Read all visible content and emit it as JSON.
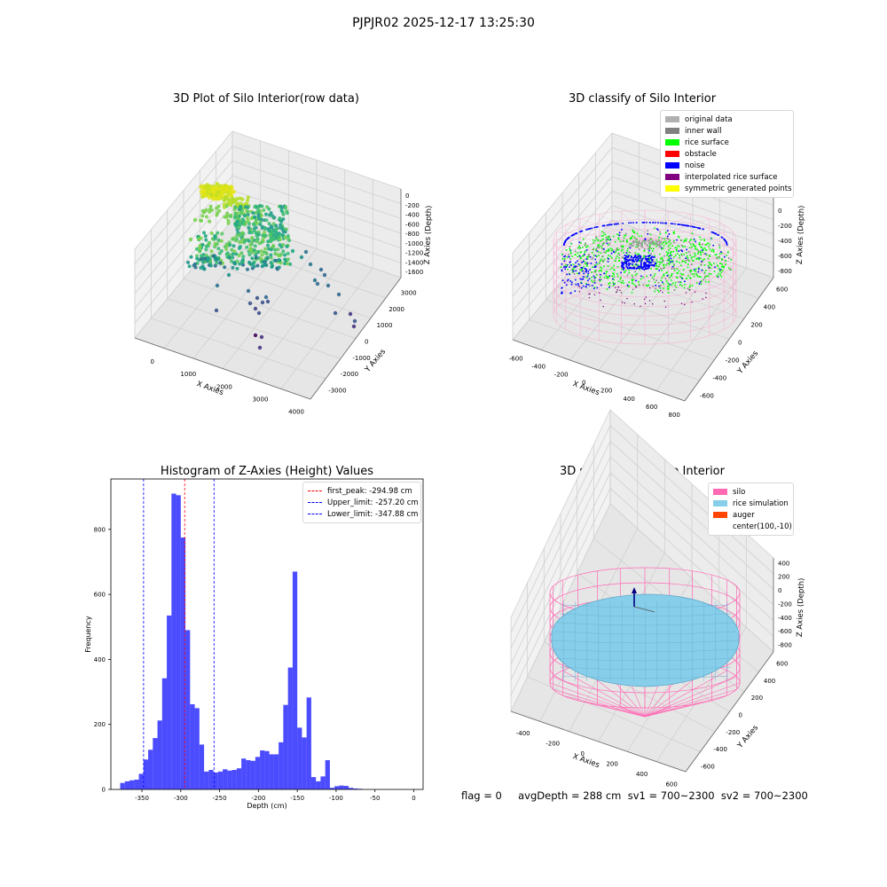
{
  "suptitle": "PJPJR02 2025-12-17 13:25:30",
  "panels": {
    "raw": {
      "title": "3D Plot of Silo Interior(row data)",
      "xlabel": "X Axies",
      "ylabel": "Y Axies",
      "zlabel": "Z Axies (Depth)",
      "xticks": [
        "0",
        "1000",
        "2000",
        "3000",
        "4000"
      ],
      "yticks": [
        "-3000",
        "-2000",
        "-1000",
        "0",
        "1000",
        "2000",
        "3000"
      ],
      "zticks": [
        "0",
        "-200",
        "-400",
        "-600",
        "-800",
        "-1000",
        "-1200",
        "-1400",
        "-1600"
      ]
    },
    "classify": {
      "title": "3D classify of Silo Interior",
      "xlabel": "X Axies",
      "ylabel": "Y Axies",
      "zlabel": "Z Axies (Depth)",
      "xticks": [
        "-600",
        "-400",
        "-200",
        "0",
        "200",
        "400",
        "600",
        "800"
      ],
      "yticks": [
        "-600",
        "-400",
        "-200",
        "0",
        "200",
        "400",
        "600"
      ],
      "zticks": [
        "200",
        "0",
        "-200",
        "-400",
        "-600",
        "-800"
      ],
      "zticks_top_partial": "00",
      "legend": [
        {
          "label": "original data",
          "color": "#b0b0b0"
        },
        {
          "label": "inner wall",
          "color": "#808080"
        },
        {
          "label": "rice surface",
          "color": "#00ff00"
        },
        {
          "label": "obstacle",
          "color": "#ff0000"
        },
        {
          "label": "noise",
          "color": "#0000ff"
        },
        {
          "label": "interpolated rice surface",
          "color": "#800080"
        },
        {
          "label": "symmetric generated points",
          "color": "#ffff00"
        }
      ]
    },
    "simulation": {
      "title": "3D simulation of Silo Interior",
      "xlabel": "X Axies",
      "ylabel": "Y Axies",
      "zlabel": "Z Axies (Depth)",
      "xticks": [
        "-400",
        "-200",
        "0",
        "200",
        "400",
        "600"
      ],
      "yticks": [
        "-600",
        "-400",
        "-200",
        "0",
        "200",
        "400",
        "600"
      ],
      "zticks": [
        "400",
        "200",
        "0",
        "-200",
        "-400",
        "-600",
        "-800"
      ],
      "legend": [
        {
          "label": "silo",
          "color": "#ff69b4"
        },
        {
          "label": "rice simulation",
          "color": "#87ceeb"
        },
        {
          "label": "auger",
          "color": "#ff4500"
        },
        {
          "label": "center(100,-10)",
          "color": ""
        }
      ]
    }
  },
  "chart_data": {
    "type": "bar",
    "title": "Histogram of Z-Axies (Height) Values",
    "xlabel": "Depth (cm)",
    "ylabel": "Frequency",
    "bar_color": "#0000ff",
    "xlim": [
      -390,
      12
    ],
    "ylim": [
      0,
      955
    ],
    "xticks": [
      -350,
      -300,
      -250,
      -200,
      -150,
      -100,
      -50,
      0
    ],
    "yticks": [
      0,
      200,
      400,
      600,
      800
    ],
    "bin_width": 6.0,
    "bin_starts": [
      -378,
      -372,
      -366,
      -360,
      -354,
      -348,
      -342,
      -336,
      -330,
      -324,
      -318,
      -312,
      -306,
      -300,
      -294,
      -288,
      -282,
      -276,
      -270,
      -264,
      -258,
      -252,
      -246,
      -240,
      -234,
      -228,
      -222,
      -216,
      -210,
      -204,
      -198,
      -192,
      -186,
      -180,
      -174,
      -168,
      -162,
      -156,
      -150,
      -144,
      -138,
      -132,
      -126,
      -120,
      -114,
      -108,
      -102,
      -96,
      -90,
      -84,
      -78,
      -72,
      -66,
      -60,
      -54,
      -48,
      -42,
      -36,
      -30,
      -24,
      -18,
      -12,
      -6
    ],
    "counts": [
      20,
      25,
      28,
      30,
      48,
      92,
      122,
      158,
      212,
      342,
      535,
      910,
      905,
      775,
      490,
      262,
      250,
      138,
      55,
      60,
      52,
      55,
      62,
      58,
      60,
      65,
      95,
      90,
      88,
      100,
      120,
      118,
      108,
      108,
      145,
      260,
      375,
      670,
      190,
      160,
      283,
      38,
      25,
      40,
      90,
      5,
      10,
      12,
      11,
      5,
      3,
      2,
      0,
      0,
      0,
      0,
      0,
      0,
      0,
      0,
      0,
      0,
      0
    ],
    "vlines": [
      {
        "label": "first_peak: -294.98 cm",
        "x": -294.98,
        "color": "#ff0000"
      },
      {
        "label": "Upper_limit: -257.20 cm",
        "x": -257.2,
        "color": "#0000ff"
      },
      {
        "label": "Lower_limit: -347.88 cm",
        "x": -347.88,
        "color": "#0000ff"
      }
    ]
  },
  "footer": "flag = 0     avgDepth = 288 cm  sv1 = 700~2300  sv2 = 700~2300"
}
